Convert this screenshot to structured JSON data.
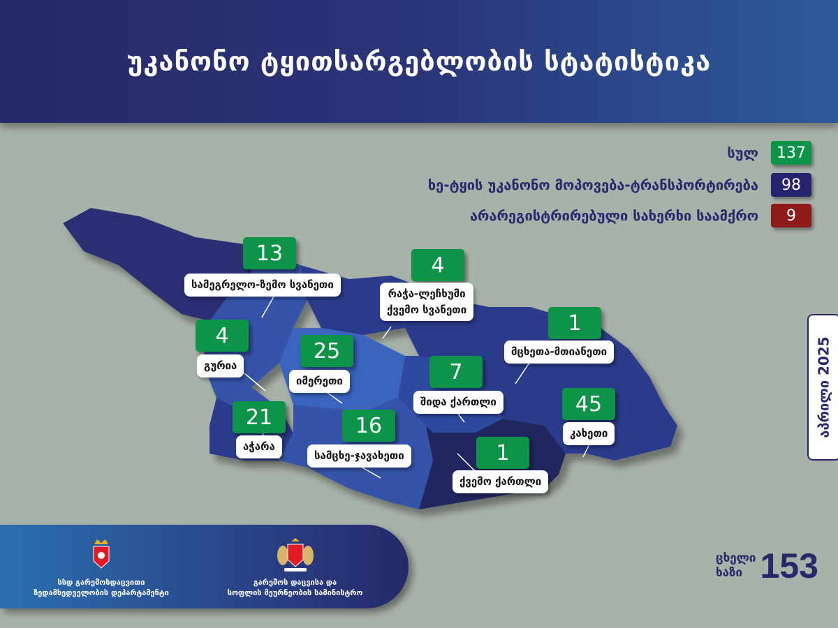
{
  "header": {
    "title": "უკანონო ტყითსარგებლობის სტატისტიკა"
  },
  "legend": [
    {
      "label": "სულ",
      "value": "137",
      "color": "#0e9448"
    },
    {
      "label": "ხე-ტყის უკანონო მოპოვება-ტრანსპორტირება",
      "value": "98",
      "color": "#25236e"
    },
    {
      "label": "არარეგისტრირებული სახერხი საამქრო",
      "value": "9",
      "color": "#8e1a1a"
    }
  ],
  "regions": {
    "samegrelo": {
      "name": "სამეგრელო-ზემო სვანეთი",
      "value": "13"
    },
    "racha": {
      "name_line1": "რაჭა-ლეჩხუმი",
      "name_line2": "ქვემო სვანეთი",
      "value": "4"
    },
    "guria": {
      "name": "გურია",
      "value": "4"
    },
    "imereti": {
      "name": "იმერეთი",
      "value": "25"
    },
    "mtskheta": {
      "name": "მცხეთა-მთიანეთი",
      "value": "1"
    },
    "shida": {
      "name": "შიდა ქართლი",
      "value": "7"
    },
    "adjara": {
      "name": "აჭარა",
      "value": "21"
    },
    "samtskhe": {
      "name": "სამცხე-ჯავახეთი",
      "value": "16"
    },
    "kakheti": {
      "name": "კახეთი",
      "value": "45"
    },
    "kvemo": {
      "name": "ქვემო ქართლი",
      "value": "1"
    }
  },
  "date": "აპრილი 2025",
  "footer": {
    "org1_line1": "სსდ გარემოსდაცვითი",
    "org1_line2": "ზედამხედველობის დეპარტამენტი",
    "org2_line1": "გარემოს დაცვისა და",
    "org2_line2": "სოფლის მეურნეობის სამინისტრო"
  },
  "hotline": {
    "line1": "ცხელი",
    "line2": "ხაზი",
    "number": "153"
  },
  "colors": {
    "header": "#26296a",
    "background": "#a9b2a8",
    "total": "#0e9448",
    "transport": "#25236e",
    "sawmill": "#8e1a1a"
  }
}
